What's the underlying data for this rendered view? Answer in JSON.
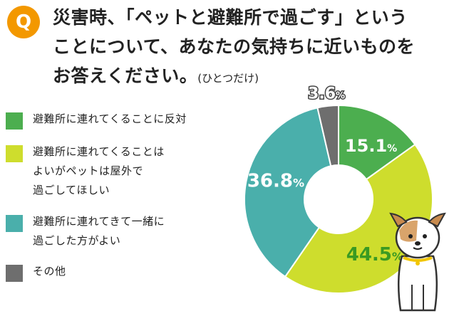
{
  "question": {
    "badge": "Q",
    "line1": "災害時、「ペットと避難所で過ごす」という",
    "line2": "ことについて、あなたの気持ちに近いものを",
    "line3": "お答えください。",
    "note": "(ひとつだけ)"
  },
  "legend": [
    {
      "lines": [
        "避難所に連れてくることに反対"
      ],
      "color": "#4cae4f"
    },
    {
      "lines": [
        "避難所に連れてくることは",
        "よいがペットは屋外で",
        "過ごしてほしい"
      ],
      "color": "#cedd2d"
    },
    {
      "lines": [
        "避難所に連れてきて一緒に",
        "過ごした方がよい"
      ],
      "color": "#4aafab"
    },
    {
      "lines": [
        "その他"
      ],
      "color": "#6e6e6e"
    }
  ],
  "chart_data": {
    "type": "pie",
    "donut": true,
    "categories": [
      "避難所に連れてくることに反対",
      "避難所に連れてくることはよいがペットは屋外で過ごしてほしい",
      "避難所に連れてきて一緒に過ごした方がよい",
      "その他"
    ],
    "values": [
      15.1,
      44.5,
      36.8,
      3.6
    ],
    "value_labels": [
      {
        "num": "15.1",
        "unit": "%"
      },
      {
        "num": "44.5",
        "unit": "%"
      },
      {
        "num": "36.8",
        "unit": "%"
      },
      {
        "num": "3.6",
        "unit": "%"
      }
    ],
    "colors": [
      "#4cae4f",
      "#cedd2d",
      "#4aafab",
      "#6e6e6e"
    ],
    "label_colors": [
      "#ffffff",
      "#3a9a22",
      "#ffffff",
      "#ffffff"
    ],
    "label_outline": [
      false,
      false,
      false,
      true
    ],
    "start_angle_deg": 0,
    "direction": "clockwise"
  }
}
